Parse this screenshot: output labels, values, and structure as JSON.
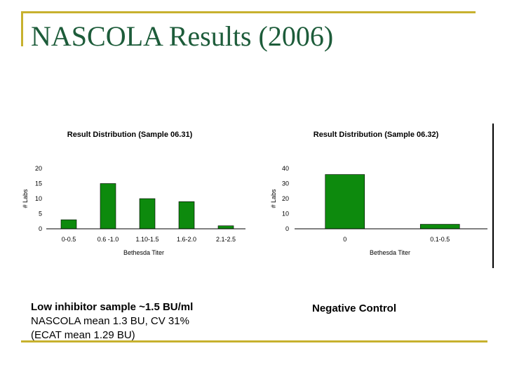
{
  "slide": {
    "title": "NASCOLA Results (2006)"
  },
  "captions": {
    "left_line1": "Low inhibitor sample ~1.5 BU/ml",
    "left_line2": "NASCOLA mean 1.3 BU, CV 31%",
    "left_line3": "(ECAT mean 1.29 BU)",
    "right_line1": "Negative Control"
  },
  "colors": {
    "accent": "#c7b12e",
    "title": "#1d5c3a",
    "bar": "#0d8a0d"
  },
  "chart_data": [
    {
      "type": "bar",
      "title": "Result Distribution (Sample 06.31)",
      "xlabel": "Bethesda Titer",
      "ylabel": "# Labs",
      "categories": [
        "0-0.5",
        "0.6 -1.0",
        "1.10-1.5",
        "1.6-2.0",
        "2.1-2.5"
      ],
      "values": [
        3,
        15,
        10,
        9,
        1
      ],
      "ylim": [
        0,
        20
      ],
      "yticks": [
        "0",
        "5",
        "10",
        "15",
        "20"
      ]
    },
    {
      "type": "bar",
      "title": "Result Distribution (Sample 06.32)",
      "xlabel": "Bethesda Titer",
      "ylabel": "# Labs",
      "categories": [
        "0",
        "0.1-0.5"
      ],
      "values": [
        36,
        3
      ],
      "ylim": [
        0,
        40
      ],
      "yticks": [
        "0",
        "10",
        "20",
        "30",
        "40"
      ]
    }
  ]
}
